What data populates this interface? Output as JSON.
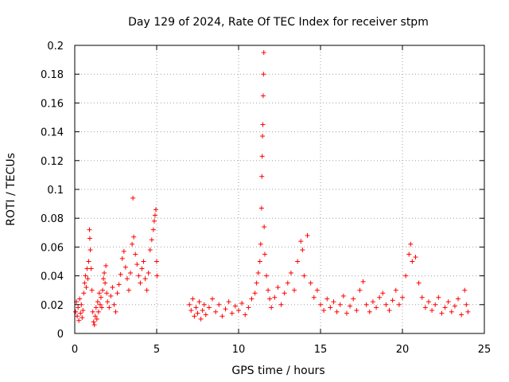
{
  "chart_data": {
    "type": "scatter",
    "title": "Day 129 of 2024, Rate Of TEC Index for receiver stpm",
    "xlabel": "GPS time / hours",
    "ylabel": "ROTI / TECUs",
    "xlim": [
      0,
      25
    ],
    "ylim": [
      0,
      0.2
    ],
    "xticks": [
      0,
      5,
      10,
      15,
      20,
      25
    ],
    "xtick_labels": [
      "0",
      "5",
      "10",
      "15",
      "20",
      "25"
    ],
    "yticks": [
      0,
      0.02,
      0.04,
      0.06,
      0.08,
      0.1,
      0.12,
      0.14,
      0.16,
      0.18,
      0.2
    ],
    "ytick_labels": [
      "0",
      "0.02",
      "0.04",
      "0.06",
      "0.08",
      "0.1",
      "0.12",
      "0.14",
      "0.16",
      "0.18",
      "0.2"
    ],
    "grid": true,
    "marker": "+",
    "color": "#ff0000",
    "series": [
      {
        "name": "ROTI",
        "points": [
          [
            0.05,
            0.015
          ],
          [
            0.1,
            0.022
          ],
          [
            0.15,
            0.012
          ],
          [
            0.2,
            0.018
          ],
          [
            0.25,
            0.009
          ],
          [
            0.3,
            0.024
          ],
          [
            0.35,
            0.014
          ],
          [
            0.4,
            0.02
          ],
          [
            0.45,
            0.011
          ],
          [
            0.5,
            0.016
          ],
          [
            0.55,
            0.028
          ],
          [
            0.6,
            0.035
          ],
          [
            0.65,
            0.04
          ],
          [
            0.7,
            0.032
          ],
          [
            0.75,
            0.045
          ],
          [
            0.8,
            0.038
          ],
          [
            0.85,
            0.05
          ],
          [
            0.9,
            0.072
          ],
          [
            0.92,
            0.066
          ],
          [
            0.95,
            0.058
          ],
          [
            1.0,
            0.045
          ],
          [
            1.05,
            0.03
          ],
          [
            1.1,
            0.015
          ],
          [
            1.15,
            0.008
          ],
          [
            1.2,
            0.006
          ],
          [
            1.25,
            0.012
          ],
          [
            1.3,
            0.018
          ],
          [
            1.35,
            0.01
          ],
          [
            1.4,
            0.022
          ],
          [
            1.45,
            0.015
          ],
          [
            1.5,
            0.028
          ],
          [
            1.55,
            0.02
          ],
          [
            1.6,
            0.025
          ],
          [
            1.65,
            0.018
          ],
          [
            1.7,
            0.03
          ],
          [
            1.75,
            0.038
          ],
          [
            1.8,
            0.042
          ],
          [
            1.85,
            0.035
          ],
          [
            1.9,
            0.047
          ],
          [
            1.95,
            0.028
          ],
          [
            2.0,
            0.022
          ],
          [
            2.1,
            0.018
          ],
          [
            2.2,
            0.026
          ],
          [
            2.3,
            0.032
          ],
          [
            2.4,
            0.02
          ],
          [
            2.5,
            0.015
          ],
          [
            2.6,
            0.028
          ],
          [
            2.7,
            0.034
          ],
          [
            2.8,
            0.041
          ],
          [
            2.9,
            0.052
          ],
          [
            3.0,
            0.057
          ],
          [
            3.1,
            0.046
          ],
          [
            3.2,
            0.038
          ],
          [
            3.3,
            0.03
          ],
          [
            3.4,
            0.042
          ],
          [
            3.5,
            0.062
          ],
          [
            3.55,
            0.094
          ],
          [
            3.6,
            0.067
          ],
          [
            3.7,
            0.055
          ],
          [
            3.8,
            0.048
          ],
          [
            3.9,
            0.04
          ],
          [
            4.0,
            0.035
          ],
          [
            4.1,
            0.045
          ],
          [
            4.2,
            0.05
          ],
          [
            4.3,
            0.038
          ],
          [
            4.4,
            0.03
          ],
          [
            4.5,
            0.042
          ],
          [
            4.6,
            0.058
          ],
          [
            4.7,
            0.065
          ],
          [
            4.8,
            0.072
          ],
          [
            4.85,
            0.078
          ],
          [
            4.9,
            0.082
          ],
          [
            4.95,
            0.086
          ],
          [
            5.0,
            0.05
          ],
          [
            5.02,
            0.04
          ],
          [
            7.0,
            0.02
          ],
          [
            7.1,
            0.016
          ],
          [
            7.2,
            0.024
          ],
          [
            7.3,
            0.012
          ],
          [
            7.4,
            0.018
          ],
          [
            7.5,
            0.014
          ],
          [
            7.6,
            0.022
          ],
          [
            7.7,
            0.01
          ],
          [
            7.8,
            0.016
          ],
          [
            7.9,
            0.02
          ],
          [
            8.0,
            0.013
          ],
          [
            8.2,
            0.018
          ],
          [
            8.4,
            0.024
          ],
          [
            8.6,
            0.015
          ],
          [
            8.8,
            0.02
          ],
          [
            9.0,
            0.012
          ],
          [
            9.2,
            0.017
          ],
          [
            9.4,
            0.022
          ],
          [
            9.6,
            0.014
          ],
          [
            9.8,
            0.019
          ],
          [
            10.0,
            0.016
          ],
          [
            10.2,
            0.021
          ],
          [
            10.4,
            0.013
          ],
          [
            10.6,
            0.018
          ],
          [
            10.8,
            0.024
          ],
          [
            11.0,
            0.028
          ],
          [
            11.1,
            0.035
          ],
          [
            11.2,
            0.042
          ],
          [
            11.3,
            0.05
          ],
          [
            11.35,
            0.062
          ],
          [
            11.4,
            0.087
          ],
          [
            11.42,
            0.109
          ],
          [
            11.44,
            0.123
          ],
          [
            11.46,
            0.137
          ],
          [
            11.48,
            0.145
          ],
          [
            11.5,
            0.165
          ],
          [
            11.52,
            0.18
          ],
          [
            11.54,
            0.195
          ],
          [
            11.56,
            0.074
          ],
          [
            11.6,
            0.055
          ],
          [
            11.7,
            0.04
          ],
          [
            11.8,
            0.03
          ],
          [
            11.9,
            0.024
          ],
          [
            12.0,
            0.018
          ],
          [
            12.2,
            0.025
          ],
          [
            12.4,
            0.032
          ],
          [
            12.6,
            0.02
          ],
          [
            12.8,
            0.028
          ],
          [
            13.0,
            0.035
          ],
          [
            13.2,
            0.042
          ],
          [
            13.4,
            0.03
          ],
          [
            13.6,
            0.05
          ],
          [
            13.8,
            0.064
          ],
          [
            13.9,
            0.058
          ],
          [
            14.0,
            0.04
          ],
          [
            14.2,
            0.068
          ],
          [
            14.4,
            0.035
          ],
          [
            14.6,
            0.025
          ],
          [
            14.8,
            0.03
          ],
          [
            15.0,
            0.02
          ],
          [
            15.2,
            0.016
          ],
          [
            15.4,
            0.024
          ],
          [
            15.6,
            0.018
          ],
          [
            15.8,
            0.022
          ],
          [
            16.0,
            0.015
          ],
          [
            16.2,
            0.02
          ],
          [
            16.4,
            0.026
          ],
          [
            16.6,
            0.014
          ],
          [
            16.8,
            0.019
          ],
          [
            17.0,
            0.024
          ],
          [
            17.2,
            0.016
          ],
          [
            17.4,
            0.03
          ],
          [
            17.6,
            0.036
          ],
          [
            17.8,
            0.02
          ],
          [
            18.0,
            0.015
          ],
          [
            18.2,
            0.022
          ],
          [
            18.4,
            0.018
          ],
          [
            18.6,
            0.025
          ],
          [
            18.8,
            0.028
          ],
          [
            19.0,
            0.02
          ],
          [
            19.2,
            0.016
          ],
          [
            19.4,
            0.023
          ],
          [
            19.6,
            0.03
          ],
          [
            19.8,
            0.02
          ],
          [
            20.0,
            0.025
          ],
          [
            20.2,
            0.04
          ],
          [
            20.4,
            0.055
          ],
          [
            20.5,
            0.062
          ],
          [
            20.6,
            0.05
          ],
          [
            20.8,
            0.053
          ],
          [
            21.0,
            0.035
          ],
          [
            21.2,
            0.025
          ],
          [
            21.4,
            0.018
          ],
          [
            21.6,
            0.022
          ],
          [
            21.8,
            0.016
          ],
          [
            22.0,
            0.02
          ],
          [
            22.2,
            0.025
          ],
          [
            22.4,
            0.014
          ],
          [
            22.6,
            0.018
          ],
          [
            22.8,
            0.022
          ],
          [
            23.0,
            0.015
          ],
          [
            23.2,
            0.019
          ],
          [
            23.4,
            0.024
          ],
          [
            23.6,
            0.013
          ],
          [
            23.8,
            0.03
          ],
          [
            23.9,
            0.02
          ],
          [
            24.0,
            0.015
          ]
        ]
      }
    ]
  }
}
